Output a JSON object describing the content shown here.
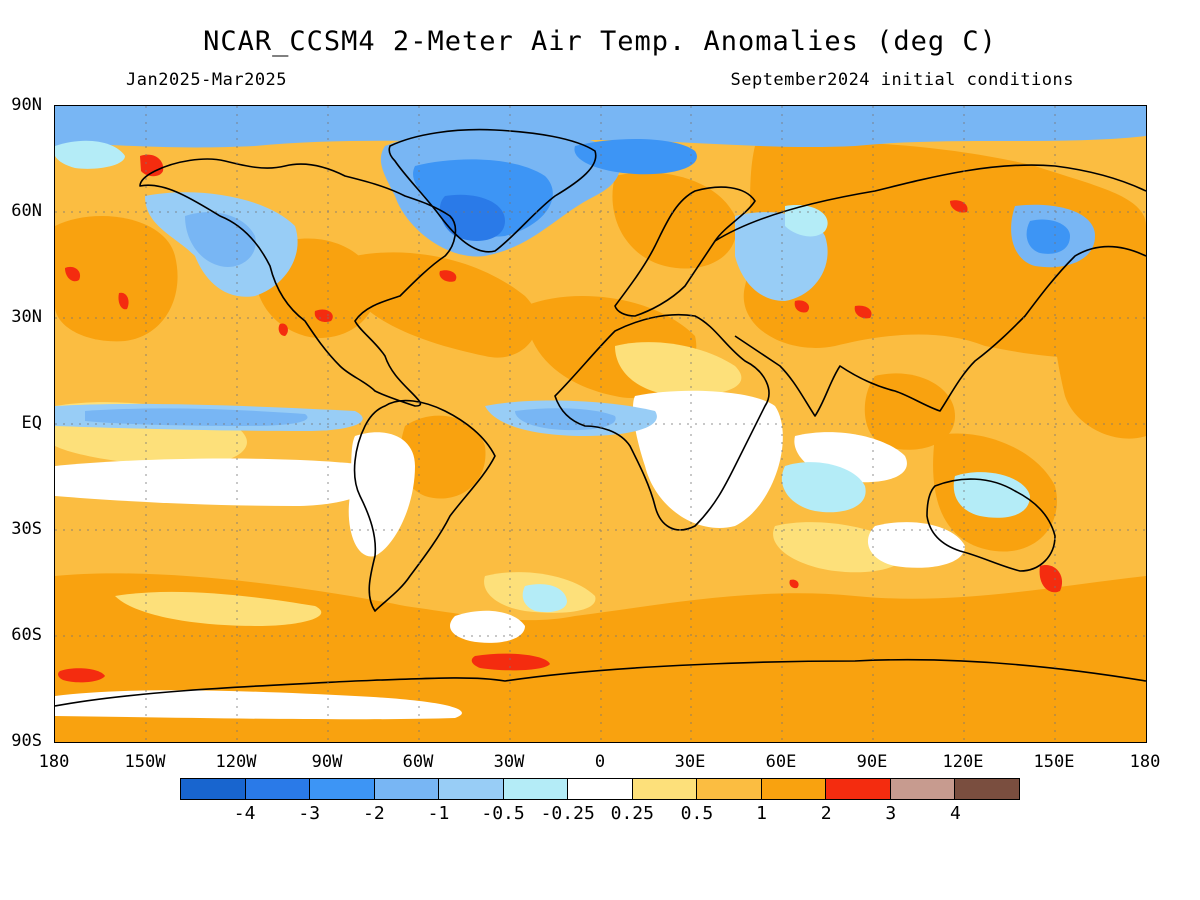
{
  "title": "NCAR_CCSM4 2-Meter Air Temp. Anomalies (deg C)",
  "subtitle_left": "Jan2025-Mar2025",
  "subtitle_right": "September2024 initial conditions",
  "map": {
    "projection": "equirectangular",
    "lon_range": [
      -180,
      180
    ],
    "lat_range": [
      -90,
      90
    ],
    "grid": "dotted",
    "lat_labels": [
      "90N",
      "60N",
      "30N",
      "EQ",
      "30S",
      "60S",
      "90S"
    ],
    "lon_labels": [
      "180",
      "150W",
      "120W",
      "90W",
      "60W",
      "30W",
      "0",
      "30E",
      "60E",
      "90E",
      "120E",
      "150E",
      "180"
    ],
    "coastline_color": "#000000"
  },
  "colorbar": {
    "colors": [
      "#1865cf",
      "#2a7ae8",
      "#3d95f5",
      "#78b6f4",
      "#98cdf6",
      "#b4ecf7",
      "#ffffff",
      "#fde07a",
      "#fbbd41",
      "#f9a20f",
      "#f42c0f",
      "#c79b8f",
      "#7a4e3f"
    ],
    "tick_labels": [
      "-4",
      "-3",
      "-2",
      "-1",
      "-0.5",
      "-0.25",
      "0.25",
      "0.5",
      "1",
      "2",
      "3",
      "4"
    ]
  }
}
